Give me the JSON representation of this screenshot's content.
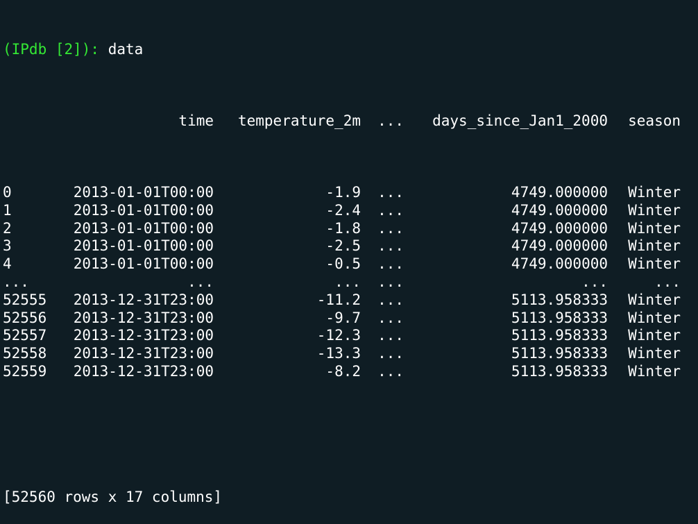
{
  "prompt": "(IPdb [2]):",
  "command": "data",
  "columns": {
    "time": "time",
    "temperature_2m": "temperature_2m",
    "ellipsis": "...",
    "days": "days_since_Jan1_2000",
    "season": "season"
  },
  "rows": [
    {
      "index": "0",
      "time": "2013-01-01T00:00",
      "temp": "-1.9",
      "ell": "...",
      "days": "4749.000000",
      "season": "Winter"
    },
    {
      "index": "1",
      "time": "2013-01-01T00:00",
      "temp": "-2.4",
      "ell": "...",
      "days": "4749.000000",
      "season": "Winter"
    },
    {
      "index": "2",
      "time": "2013-01-01T00:00",
      "temp": "-1.8",
      "ell": "...",
      "days": "4749.000000",
      "season": "Winter"
    },
    {
      "index": "3",
      "time": "2013-01-01T00:00",
      "temp": "-2.5",
      "ell": "...",
      "days": "4749.000000",
      "season": "Winter"
    },
    {
      "index": "4",
      "time": "2013-01-01T00:00",
      "temp": "-0.5",
      "ell": "...",
      "days": "4749.000000",
      "season": "Winter"
    },
    {
      "index": "...",
      "time": "...",
      "temp": "...",
      "ell": "...",
      "days": "...",
      "season": "..."
    },
    {
      "index": "52555",
      "time": "2013-12-31T23:00",
      "temp": "-11.2",
      "ell": "...",
      "days": "5113.958333",
      "season": "Winter"
    },
    {
      "index": "52556",
      "time": "2013-12-31T23:00",
      "temp": "-9.7",
      "ell": "...",
      "days": "5113.958333",
      "season": "Winter"
    },
    {
      "index": "52557",
      "time": "2013-12-31T23:00",
      "temp": "-12.3",
      "ell": "...",
      "days": "5113.958333",
      "season": "Winter"
    },
    {
      "index": "52558",
      "time": "2013-12-31T23:00",
      "temp": "-13.3",
      "ell": "...",
      "days": "5113.958333",
      "season": "Winter"
    },
    {
      "index": "52559",
      "time": "2013-12-31T23:00",
      "temp": "-8.2",
      "ell": "...",
      "days": "5113.958333",
      "season": "Winter"
    }
  ],
  "summary": "[52560 rows x 17 columns]",
  "colors": {
    "background": "#0f1d24",
    "prompt": "#34e834",
    "text": "#ffffff"
  }
}
